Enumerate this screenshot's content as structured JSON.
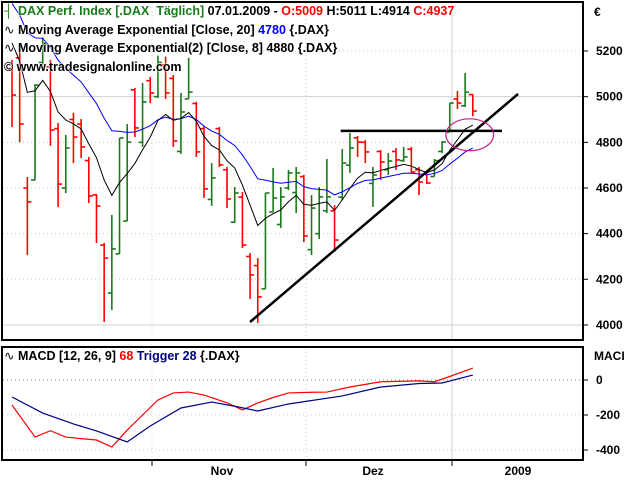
{
  "legend": {
    "instrument": "DAX Perf. Index [.DAX  Täglich]",
    "date": "07.01.2009 - ",
    "open": "O:5009",
    "hl": " H:5011 L:4914 ",
    "close": "C:4937",
    "ema20_label": "Moving Average Exponential [Close, 20] ",
    "ema20_value": "4780",
    "ema20_suffix": " {.DAX}",
    "ema8_label": "Moving Average Exponential(2) [Close, 8] 4880 {.DAX}",
    "copyright": "© www.tradesignalonline.com",
    "macd_label": "MACD [12, 26, 9] ",
    "macd_value": "68",
    "trigger_label": " Trigger 28",
    "macd_suffix": " {.DAX}",
    "currency": "€",
    "macd_axis_title": "MACI"
  },
  "colors": {
    "up": "#1a7a1a",
    "down": "#ff0000",
    "ema20": "#0000ff",
    "ema8": "#000000",
    "macd": "#ff0000",
    "trigger": "#000080",
    "ellipse": "#c0208a"
  },
  "chart_data": [
    {
      "type": "ohlc",
      "title": "DAX Perf. Index [.DAX Täglich]",
      "ylim": [
        3950,
        5330
      ],
      "yticks": [
        4000,
        4200,
        4400,
        4600,
        4800,
        5000,
        5200
      ],
      "ytick_labels": [
        "4000",
        "4200",
        "4400",
        "4600",
        "4800",
        "5000",
        "5200"
      ],
      "ema_seeds": {
        "ema20": 5450,
        "ema8": 5300
      },
      "bars": [
        [
          5120,
          5161,
          4867,
          5007
        ],
        [
          5170,
          5226,
          4801,
          4880
        ],
        [
          4600,
          4648,
          4306,
          4539
        ],
        [
          4635,
          5055,
          4635,
          5050
        ],
        [
          5150,
          5260,
          5140,
          5230
        ],
        [
          5130,
          5161,
          4785,
          4854
        ],
        [
          4860,
          4885,
          4517,
          4617
        ],
        [
          4600,
          4832,
          4578,
          4775
        ],
        [
          4900,
          4930,
          4709,
          4823
        ],
        [
          4880,
          4902,
          4731,
          4780
        ],
        [
          4720,
          4736,
          4534,
          4565
        ],
        [
          4570,
          4574,
          4359,
          4521
        ],
        [
          4350,
          4359,
          4013,
          4293
        ],
        [
          4140,
          4482,
          4066,
          4333
        ],
        [
          4311,
          4819,
          4311,
          4819
        ],
        [
          4455,
          4880,
          4455,
          4801
        ],
        [
          5030,
          5038,
          4823,
          4863
        ],
        [
          4800,
          5060,
          4780,
          4977
        ],
        [
          5070,
          5086,
          4972,
          5016
        ],
        [
          5000,
          5180,
          4994,
          5150
        ],
        [
          5140,
          5175,
          4990,
          5016
        ],
        [
          5080,
          5095,
          4780,
          4806
        ],
        [
          4760,
          5016,
          4749,
          4933
        ],
        [
          4990,
          5170,
          4990,
          5020
        ],
        [
          4970,
          4977,
          4736,
          4758
        ],
        [
          4860,
          4872,
          4556,
          4596
        ],
        [
          4550,
          4709,
          4521,
          4644
        ],
        [
          4860,
          4867,
          4692,
          4701
        ],
        [
          4680,
          4692,
          4512,
          4552
        ],
        [
          4450,
          4604,
          4447,
          4578
        ],
        [
          4560,
          4582,
          4337,
          4350
        ],
        [
          4300,
          4315,
          4114,
          4219
        ],
        [
          4260,
          4293,
          4009,
          4123
        ],
        [
          4158,
          4578,
          4158,
          4578
        ],
        [
          4495,
          4688,
          4495,
          4556
        ],
        [
          4440,
          4604,
          4425,
          4561
        ],
        [
          4600,
          4679,
          4591,
          4666
        ],
        [
          4580,
          4692,
          4490,
          4666
        ],
        [
          4650,
          4657,
          4363,
          4390
        ],
        [
          4330,
          4569,
          4306,
          4512
        ],
        [
          4400,
          4604,
          4377,
          4561
        ],
        [
          4500,
          4727,
          4490,
          4561
        ],
        [
          4500,
          4525,
          4320,
          4372
        ],
        [
          4560,
          4771,
          4547,
          4709
        ],
        [
          4700,
          4841,
          4666,
          4775
        ],
        [
          4820,
          4828,
          4736,
          4801
        ],
        [
          4800,
          4810,
          4709,
          4758
        ],
        [
          4620,
          4692,
          4517,
          4657
        ],
        [
          4760,
          4766,
          4635,
          4714
        ],
        [
          4680,
          4753,
          4657,
          4718
        ],
        [
          4760,
          4775,
          4679,
          4723
        ],
        [
          4720,
          4780,
          4714,
          4736
        ],
        [
          4770,
          4780,
          4666,
          4670
        ],
        [
          4680,
          4692,
          4569,
          4626
        ],
        [
          4660,
          4670,
          4617,
          4622
        ],
        [
          4650,
          4727,
          4650,
          4720
        ],
        [
          4760,
          4806,
          4753,
          4801
        ],
        [
          4845,
          4972,
          4845,
          4972
        ],
        [
          4990,
          5025,
          4946,
          4972
        ],
        [
          4960,
          5104,
          4955,
          5020
        ],
        [
          5009,
          5011,
          4914,
          4937
        ]
      ],
      "annotations": {
        "trendline": [
          [
            31,
            4013
          ],
          [
            65.9,
            5012
          ]
        ],
        "resistance": [
          [
            42.8,
            4850
          ],
          [
            63.8,
            4850
          ]
        ],
        "ellipse": {
          "center": [
            59.6,
            4833
          ],
          "radius_bars": 3.1,
          "radius_price": 70
        }
      }
    },
    {
      "type": "line",
      "title": "MACD [12, 26, 9]",
      "ylim": [
        -430,
        100
      ],
      "yticks": [
        -400,
        -200,
        0
      ],
      "ytick_labels": [
        "-400",
        "-200",
        "0"
      ],
      "series": [
        {
          "name": "MACD",
          "points": [
            [
              0,
              -143
            ],
            [
              3,
              -326
            ],
            [
              5,
              -290
            ],
            [
              7,
              -326
            ],
            [
              9,
              -335
            ],
            [
              11,
              -343
            ],
            [
              13,
              -383
            ],
            [
              15,
              -286
            ],
            [
              17,
              -200
            ],
            [
              19,
              -114
            ],
            [
              21,
              -74
            ],
            [
              23,
              -69
            ],
            [
              25,
              -86
            ],
            [
              28,
              -130
            ],
            [
              30,
              -171
            ],
            [
              32,
              -131
            ],
            [
              34,
              -100
            ],
            [
              36,
              -74
            ],
            [
              39,
              -70
            ],
            [
              41,
              -69
            ],
            [
              44,
              -40
            ],
            [
              48,
              -10
            ],
            [
              53,
              -5
            ],
            [
              55,
              -10
            ],
            [
              57,
              20
            ],
            [
              60,
              68
            ]
          ]
        },
        {
          "name": "Trigger",
          "points": [
            [
              0,
              -97
            ],
            [
              4,
              -189
            ],
            [
              8,
              -251
            ],
            [
              11,
              -291
            ],
            [
              15,
              -354
            ],
            [
              18,
              -263
            ],
            [
              22,
              -160
            ],
            [
              26,
              -126
            ],
            [
              29,
              -150
            ],
            [
              32,
              -177
            ],
            [
              36,
              -137
            ],
            [
              43,
              -91
            ],
            [
              48,
              -40
            ],
            [
              53,
              -20
            ],
            [
              56,
              -17
            ],
            [
              60,
              28
            ]
          ]
        }
      ],
      "xticks": [
        "Nov",
        "Dez",
        "2009"
      ]
    }
  ]
}
